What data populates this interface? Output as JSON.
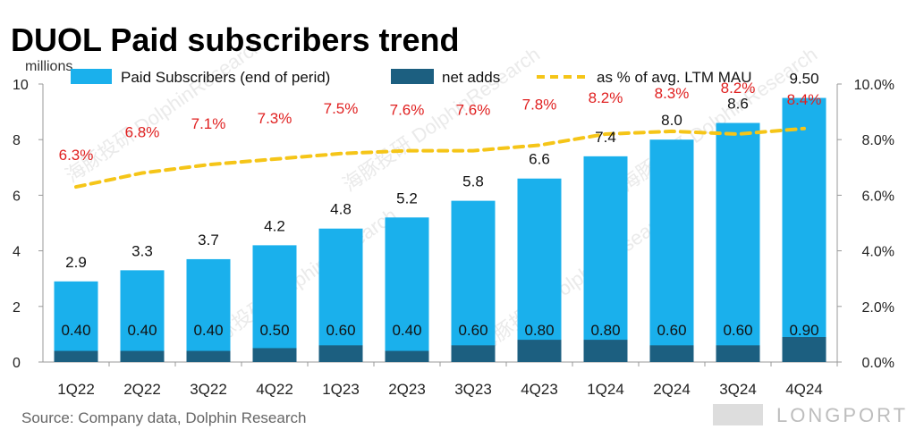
{
  "title": "DUOL Paid subscribers trend",
  "source": "Source:  Company data, Dolphin Research",
  "watermark": "海豚投研 DolphinResearch",
  "brand": "LONGPORT",
  "colors": {
    "subscribers": "#1ab0ec",
    "net_adds": "#1c5f80",
    "ltm_line": "#f5c518",
    "pct_text": "#e02020"
  },
  "chart_data": {
    "type": "bar",
    "title": "DUOL Paid subscribers trend",
    "ylabel_left": "millions",
    "categories": [
      "1Q22",
      "2Q22",
      "3Q22",
      "4Q22",
      "1Q23",
      "2Q23",
      "3Q23",
      "4Q23",
      "1Q24",
      "2Q24",
      "3Q24",
      "4Q24"
    ],
    "series": [
      {
        "name": "Paid Subscribers (end of perid)",
        "type": "bar",
        "axis": "left",
        "values": [
          2.9,
          3.3,
          3.7,
          4.2,
          4.8,
          5.2,
          5.8,
          6.6,
          7.4,
          8.0,
          8.6,
          9.5
        ],
        "labels": [
          "2.9",
          "3.3",
          "3.7",
          "4.2",
          "4.8",
          "5.2",
          "5.8",
          "6.6",
          "7.4",
          "8.0",
          "8.6",
          "9.50"
        ]
      },
      {
        "name": "net adds",
        "type": "bar",
        "axis": "left",
        "values": [
          0.4,
          0.4,
          0.4,
          0.5,
          0.6,
          0.4,
          0.6,
          0.8,
          0.8,
          0.6,
          0.6,
          0.9
        ],
        "labels": [
          "0.40",
          "0.40",
          "0.40",
          "0.50",
          "0.60",
          "0.40",
          "0.60",
          "0.80",
          "0.80",
          "0.60",
          "0.60",
          "0.90"
        ]
      },
      {
        "name": "as % of avg. LTM MAU",
        "type": "line",
        "axis": "right",
        "style": "dashed",
        "values": [
          6.3,
          6.8,
          7.1,
          7.3,
          7.5,
          7.6,
          7.6,
          7.8,
          8.2,
          8.3,
          8.2,
          8.4
        ],
        "labels": [
          "6.3%",
          "6.8%",
          "7.1%",
          "7.3%",
          "7.5%",
          "7.6%",
          "7.6%",
          "7.8%",
          "8.2%",
          "8.3%",
          "8.2%",
          "8.4%"
        ]
      }
    ],
    "ylim_left": [
      0,
      10
    ],
    "yticks_left": [
      "0",
      "2",
      "4",
      "6",
      "8",
      "10"
    ],
    "ylim_right": [
      0,
      10
    ],
    "yticks_right": [
      "0.0%",
      "2.0%",
      "4.0%",
      "6.0%",
      "8.0%",
      "10.0%"
    ],
    "legend_position": "top",
    "grid": false
  }
}
